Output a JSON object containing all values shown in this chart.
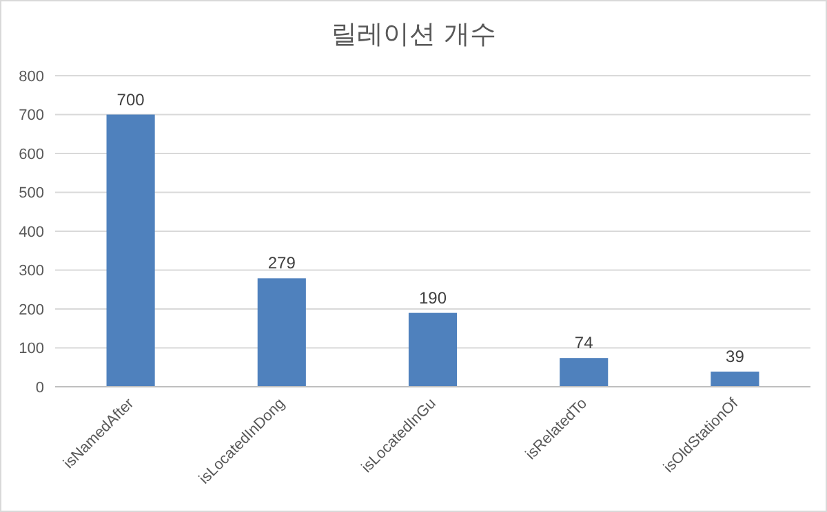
{
  "chart_data": {
    "type": "bar",
    "title": "릴레이션 개수",
    "categories": [
      "isNamedAfter",
      "isLocatedInDong",
      "isLocatedInGu",
      "isRelatedTo",
      "isOldStationOf"
    ],
    "values": [
      700,
      279,
      190,
      74,
      39
    ],
    "color": "#4f81bd",
    "ylim": [
      0,
      800
    ],
    "yticks": [
      0,
      100,
      200,
      300,
      400,
      500,
      600,
      700,
      800
    ],
    "grid": "y",
    "data_labels": true
  }
}
